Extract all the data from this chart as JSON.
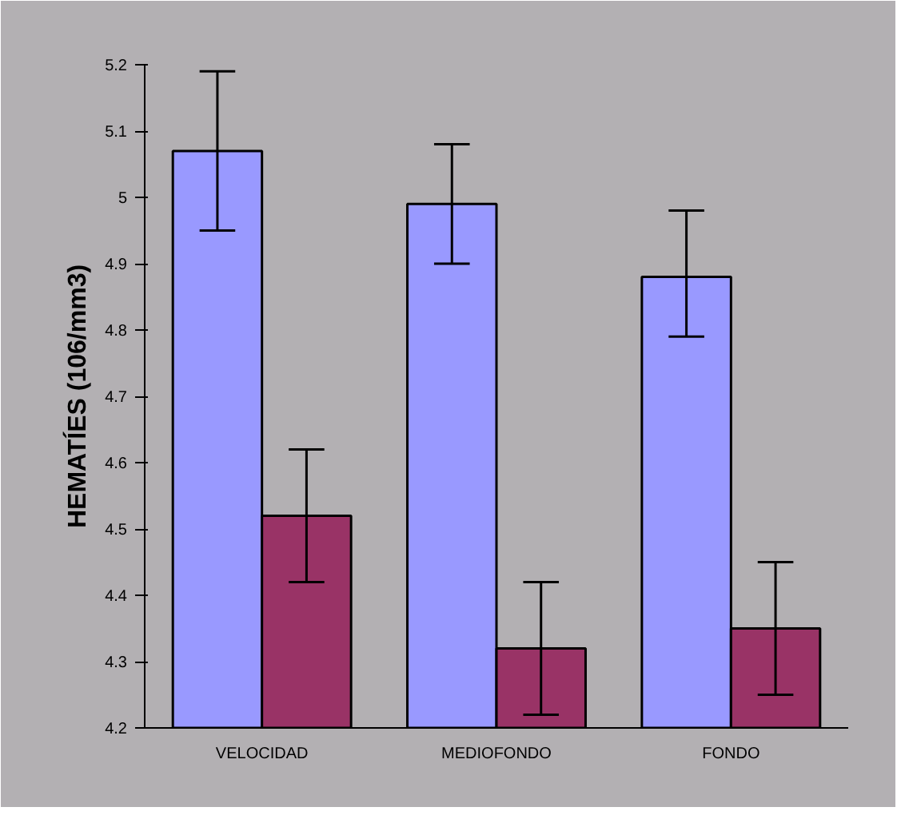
{
  "chart_data": {
    "type": "bar",
    "ylabel": "HEMATÍES (106/mm3)",
    "categories": [
      "VELOCIDAD",
      "MEDIOFONDO",
      "FONDO"
    ],
    "series": [
      {
        "color": "#9999ff",
        "values": [
          5.07,
          4.99,
          4.88
        ],
        "errors": [
          [
            4.95,
            5.19
          ],
          [
            4.9,
            5.08
          ],
          [
            4.79,
            4.98
          ]
        ]
      },
      {
        "color": "#993366",
        "values": [
          4.52,
          4.32,
          4.35
        ],
        "errors": [
          [
            4.42,
            4.62
          ],
          [
            4.22,
            4.42
          ],
          [
            4.25,
            4.45
          ]
        ]
      }
    ],
    "ylim": [
      4.2,
      5.2
    ],
    "yticks": [
      4.2,
      4.3,
      4.4,
      4.5,
      4.6,
      4.7,
      4.8,
      4.9,
      5,
      5.1,
      5.2
    ],
    "grid": false
  }
}
